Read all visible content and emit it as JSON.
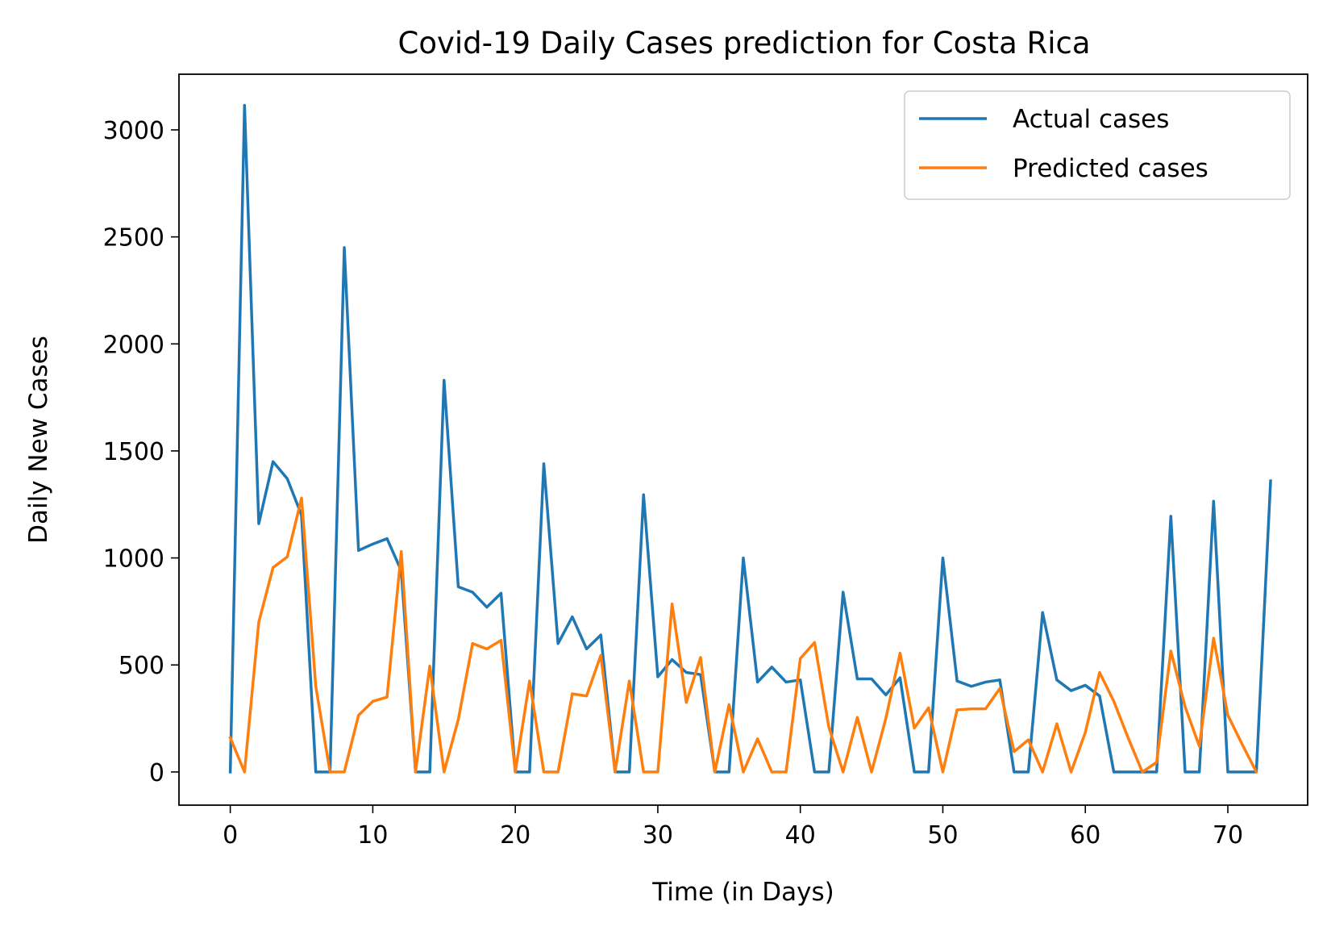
{
  "chart_data": {
    "type": "line",
    "title": "Covid-19 Daily Cases prediction for Costa Rica",
    "xlabel": "Time (in Days)",
    "ylabel": "Daily New Cases",
    "xlim": [
      -3.6,
      75.6
    ],
    "ylim": [
      -155,
      3260
    ],
    "xticks": [
      0,
      10,
      20,
      30,
      40,
      50,
      60,
      70
    ],
    "yticks": [
      0,
      500,
      1000,
      1500,
      2000,
      2500,
      3000
    ],
    "grid": false,
    "legend": "top-right",
    "series": [
      {
        "name": "Actual cases",
        "color": "#1f77b4",
        "values": [
          0,
          3115,
          1160,
          1450,
          1370,
          1200,
          0,
          0,
          2450,
          1035,
          1065,
          1090,
          940,
          0,
          0,
          1830,
          865,
          840,
          770,
          835,
          0,
          0,
          1440,
          600,
          725,
          575,
          640,
          0,
          0,
          1295,
          445,
          525,
          465,
          455,
          0,
          0,
          1000,
          420,
          490,
          420,
          430,
          0,
          0,
          840,
          435,
          435,
          360,
          440,
          0,
          0,
          1000,
          425,
          400,
          420,
          430,
          0,
          0,
          745,
          430,
          380,
          405,
          355,
          0,
          0,
          0,
          0,
          1195,
          0,
          0,
          1265,
          0,
          0,
          0,
          1360
        ]
      },
      {
        "name": "Predicted cases",
        "color": "#ff7f0e",
        "values": [
          160,
          0,
          700,
          955,
          1005,
          1280,
          400,
          0,
          0,
          265,
          330,
          350,
          1030,
          0,
          495,
          0,
          245,
          600,
          575,
          615,
          0,
          425,
          0,
          0,
          365,
          355,
          545,
          0,
          425,
          0,
          0,
          785,
          325,
          535,
          0,
          315,
          0,
          155,
          0,
          0,
          530,
          605,
          210,
          0,
          255,
          0,
          250,
          555,
          205,
          300,
          0,
          290,
          295,
          295,
          390,
          95,
          150,
          0,
          225,
          0,
          185,
          465,
          330,
          160,
          0,
          45,
          565,
          305,
          120,
          625,
          265,
          130,
          0
        ]
      }
    ]
  }
}
